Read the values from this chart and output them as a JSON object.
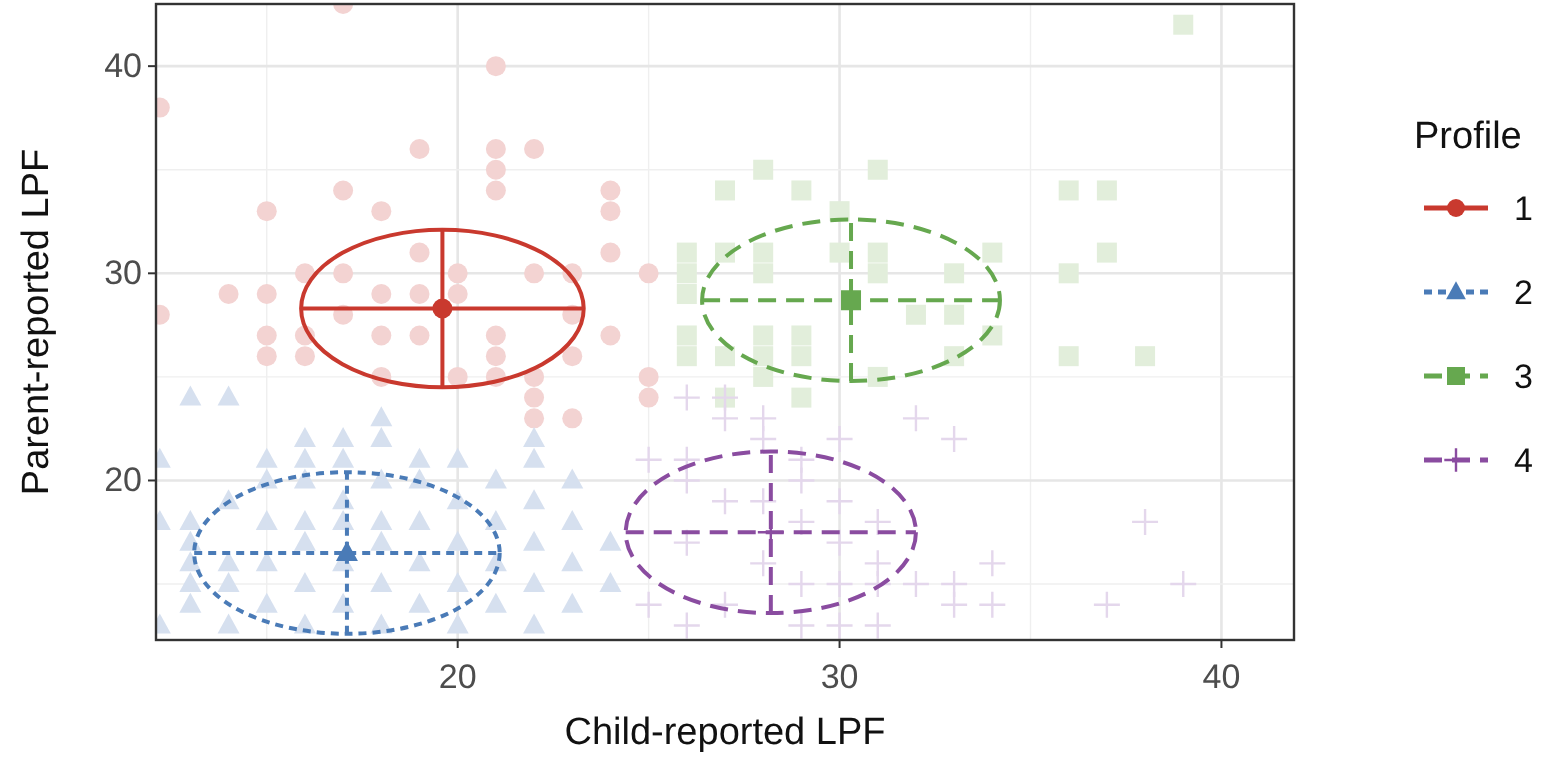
{
  "chart_data": {
    "type": "scatter",
    "xlabel": "Child-reported LPF",
    "ylabel": "Parent-reported LPF",
    "legend_title": "Profile",
    "xlim": [
      12.1,
      41.9
    ],
    "ylim": [
      12.3,
      43
    ],
    "xticks": [
      20,
      30,
      40
    ],
    "yticks": [
      20,
      30,
      40
    ],
    "grid": true,
    "legend": "right",
    "series": [
      {
        "color": "#f3d3d2",
        "marker": "circle",
        "x": [
          19,
          21,
          21,
          21,
          22,
          24,
          24,
          15,
          17,
          18,
          16,
          17,
          20,
          20,
          22,
          23,
          24,
          25,
          18,
          14,
          15,
          19,
          16,
          16,
          17,
          15,
          18,
          19,
          21,
          21,
          22,
          22,
          22,
          23,
          23,
          24,
          25,
          25,
          20,
          18,
          15,
          21,
          17,
          12.2,
          12.2,
          19,
          23,
          21
        ],
        "values": [
          36,
          36,
          35,
          34,
          36,
          34,
          33,
          33,
          34,
          33,
          30,
          30,
          30,
          29,
          30,
          30,
          31,
          30,
          29,
          29,
          29,
          31,
          27,
          26,
          28,
          27,
          27,
          27,
          26,
          25,
          25,
          24,
          23,
          23,
          26,
          27,
          25,
          24,
          25,
          25,
          26,
          40,
          43,
          38,
          28,
          29,
          28,
          27
        ]
      },
      {
        "color": "#d6e0ef",
        "marker": "triangle",
        "x": [
          13,
          14,
          12.2,
          13,
          13,
          13,
          13,
          13,
          14,
          14,
          14,
          14,
          15,
          15,
          15,
          15,
          15,
          16,
          16,
          16,
          16,
          16,
          16,
          16,
          17,
          17,
          17,
          17,
          17,
          17,
          18,
          18,
          18,
          18,
          18,
          18,
          18,
          19,
          19,
          19,
          19,
          19,
          20,
          20,
          20,
          20,
          20,
          21,
          21,
          21,
          21,
          22,
          22,
          22,
          22,
          22,
          22,
          23,
          23,
          23,
          23,
          24,
          24,
          12.2,
          12.2
        ],
        "values": [
          24,
          24,
          18,
          18,
          17,
          16,
          15,
          14,
          19,
          16,
          15,
          13,
          21,
          20,
          18,
          16,
          14,
          22,
          21,
          20,
          18,
          17,
          15,
          13,
          22,
          21,
          19,
          18,
          16,
          14,
          23,
          22,
          20,
          18,
          17,
          15,
          13,
          21,
          20,
          18,
          16,
          14,
          21,
          19,
          17,
          15,
          13,
          20,
          18,
          16,
          14,
          22,
          21,
          19,
          17,
          15,
          13,
          20,
          18,
          16,
          14,
          17,
          15,
          13,
          21
        ]
      },
      {
        "color": "#e2eedb",
        "marker": "square",
        "x": [
          28,
          31,
          27,
          29,
          30,
          27,
          28,
          30,
          31,
          36,
          37,
          36,
          37,
          26,
          26,
          26,
          28,
          31,
          33,
          34,
          32,
          33,
          34,
          26,
          26,
          27,
          28,
          28,
          28,
          29,
          29,
          29,
          31,
          33,
          36,
          38,
          39,
          27
        ],
        "values": [
          35,
          35,
          34,
          34,
          33,
          31,
          31,
          31,
          31,
          34,
          34,
          30,
          31,
          31,
          30,
          29,
          30,
          30,
          30,
          31,
          28,
          28,
          27,
          27,
          26,
          26,
          27,
          26,
          25,
          27,
          26,
          24,
          25,
          26,
          26,
          26,
          42,
          24
        ]
      },
      {
        "color": "#e4d7ec",
        "marker": "cross",
        "x": [
          26,
          27,
          27,
          28,
          28,
          30,
          32,
          33,
          26,
          26,
          27,
          29,
          30,
          31,
          26,
          29,
          30,
          31,
          28,
          29,
          30,
          31,
          32,
          33,
          33,
          34,
          34,
          26,
          27,
          29,
          30,
          31,
          25,
          37,
          38,
          39,
          25,
          28,
          29
        ],
        "values": [
          24,
          24,
          23,
          23,
          22,
          22,
          23,
          22,
          21,
          20,
          19,
          20,
          19,
          18,
          17,
          18,
          17,
          16,
          16,
          15,
          15,
          15,
          15,
          15,
          14,
          16,
          14,
          13,
          14,
          13,
          13,
          13,
          14,
          14,
          18,
          15,
          21,
          19,
          21
        ]
      },
      {
        "name": "1",
        "color": "#c9392e",
        "marker": "circle",
        "line_style": "solid",
        "x": [
          19.6
        ],
        "values": [
          28.3
        ],
        "xerrors": [
          3.7
        ],
        "errors": [
          3.8
        ]
      },
      {
        "name": "2",
        "color": "#4a7bb7",
        "marker": "triangle",
        "line_style": "dotted",
        "x": [
          17.1
        ],
        "values": [
          16.5
        ],
        "xerrors": [
          4.0
        ],
        "errors": [
          3.9
        ]
      },
      {
        "name": "3",
        "color": "#66a84f",
        "marker": "square",
        "line_style": "dashed",
        "x": [
          30.3
        ],
        "values": [
          28.7
        ],
        "xerrors": [
          3.9
        ],
        "errors": [
          3.9
        ]
      },
      {
        "name": "4",
        "color": "#8a4ca0",
        "marker": "cross",
        "line_style": "dashed",
        "x": [
          28.2
        ],
        "values": [
          17.5
        ],
        "xerrors": [
          3.8
        ],
        "errors": [
          3.9
        ]
      }
    ]
  }
}
